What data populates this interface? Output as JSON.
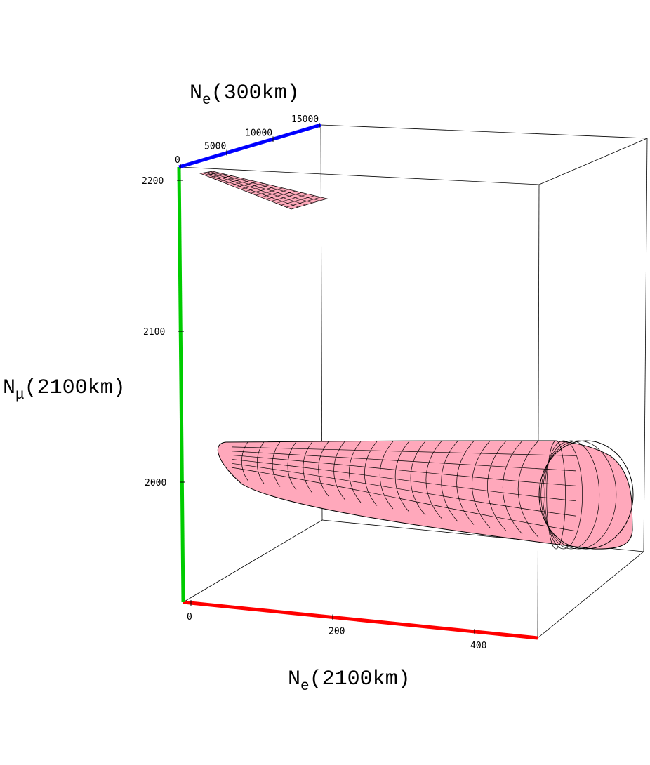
{
  "chart_data": {
    "type": "3d-surface",
    "axes": {
      "x": {
        "label_main": "N",
        "label_sub": "e",
        "label_rest": "(2100km)",
        "ticks": [
          {
            "value": 0,
            "label": "0"
          },
          {
            "value": 200,
            "label": "200"
          },
          {
            "value": 400,
            "label": "400"
          }
        ],
        "range": [
          -25,
          475
        ],
        "color": "#ff0000"
      },
      "y": {
        "label_main": "N",
        "label_sub": "μ",
        "label_rest": "(2100km)",
        "ticks": [
          {
            "value": 2000,
            "label": "2000"
          },
          {
            "value": 2100,
            "label": "2100"
          },
          {
            "value": 2200,
            "label": "2200"
          }
        ],
        "range": [
          1920,
          2210
        ],
        "color": "#00cc00"
      },
      "z": {
        "label_main": "N",
        "label_sub": "e",
        "label_rest": "(300km)",
        "ticks": [
          {
            "value": 0,
            "label": "0"
          },
          {
            "value": 5000,
            "label": "5000"
          },
          {
            "value": 10000,
            "label": "10000"
          },
          {
            "value": 15000,
            "label": "15000"
          }
        ],
        "range": [
          0,
          15000
        ],
        "color": "#0000ff"
      }
    },
    "surfaces": [
      {
        "name": "",
        "color": "#ffaabb",
        "ne_300km": [
          0,
          15000
        ],
        "nmu_2100km": [
          2180,
          2210
        ]
      },
      {
        "name": "",
        "color": "#ffaabb",
        "ne_2100km": [
          25,
          475
        ],
        "nmu_2100km": [
          1960,
          2040
        ]
      }
    ],
    "box": true,
    "grid": false
  }
}
